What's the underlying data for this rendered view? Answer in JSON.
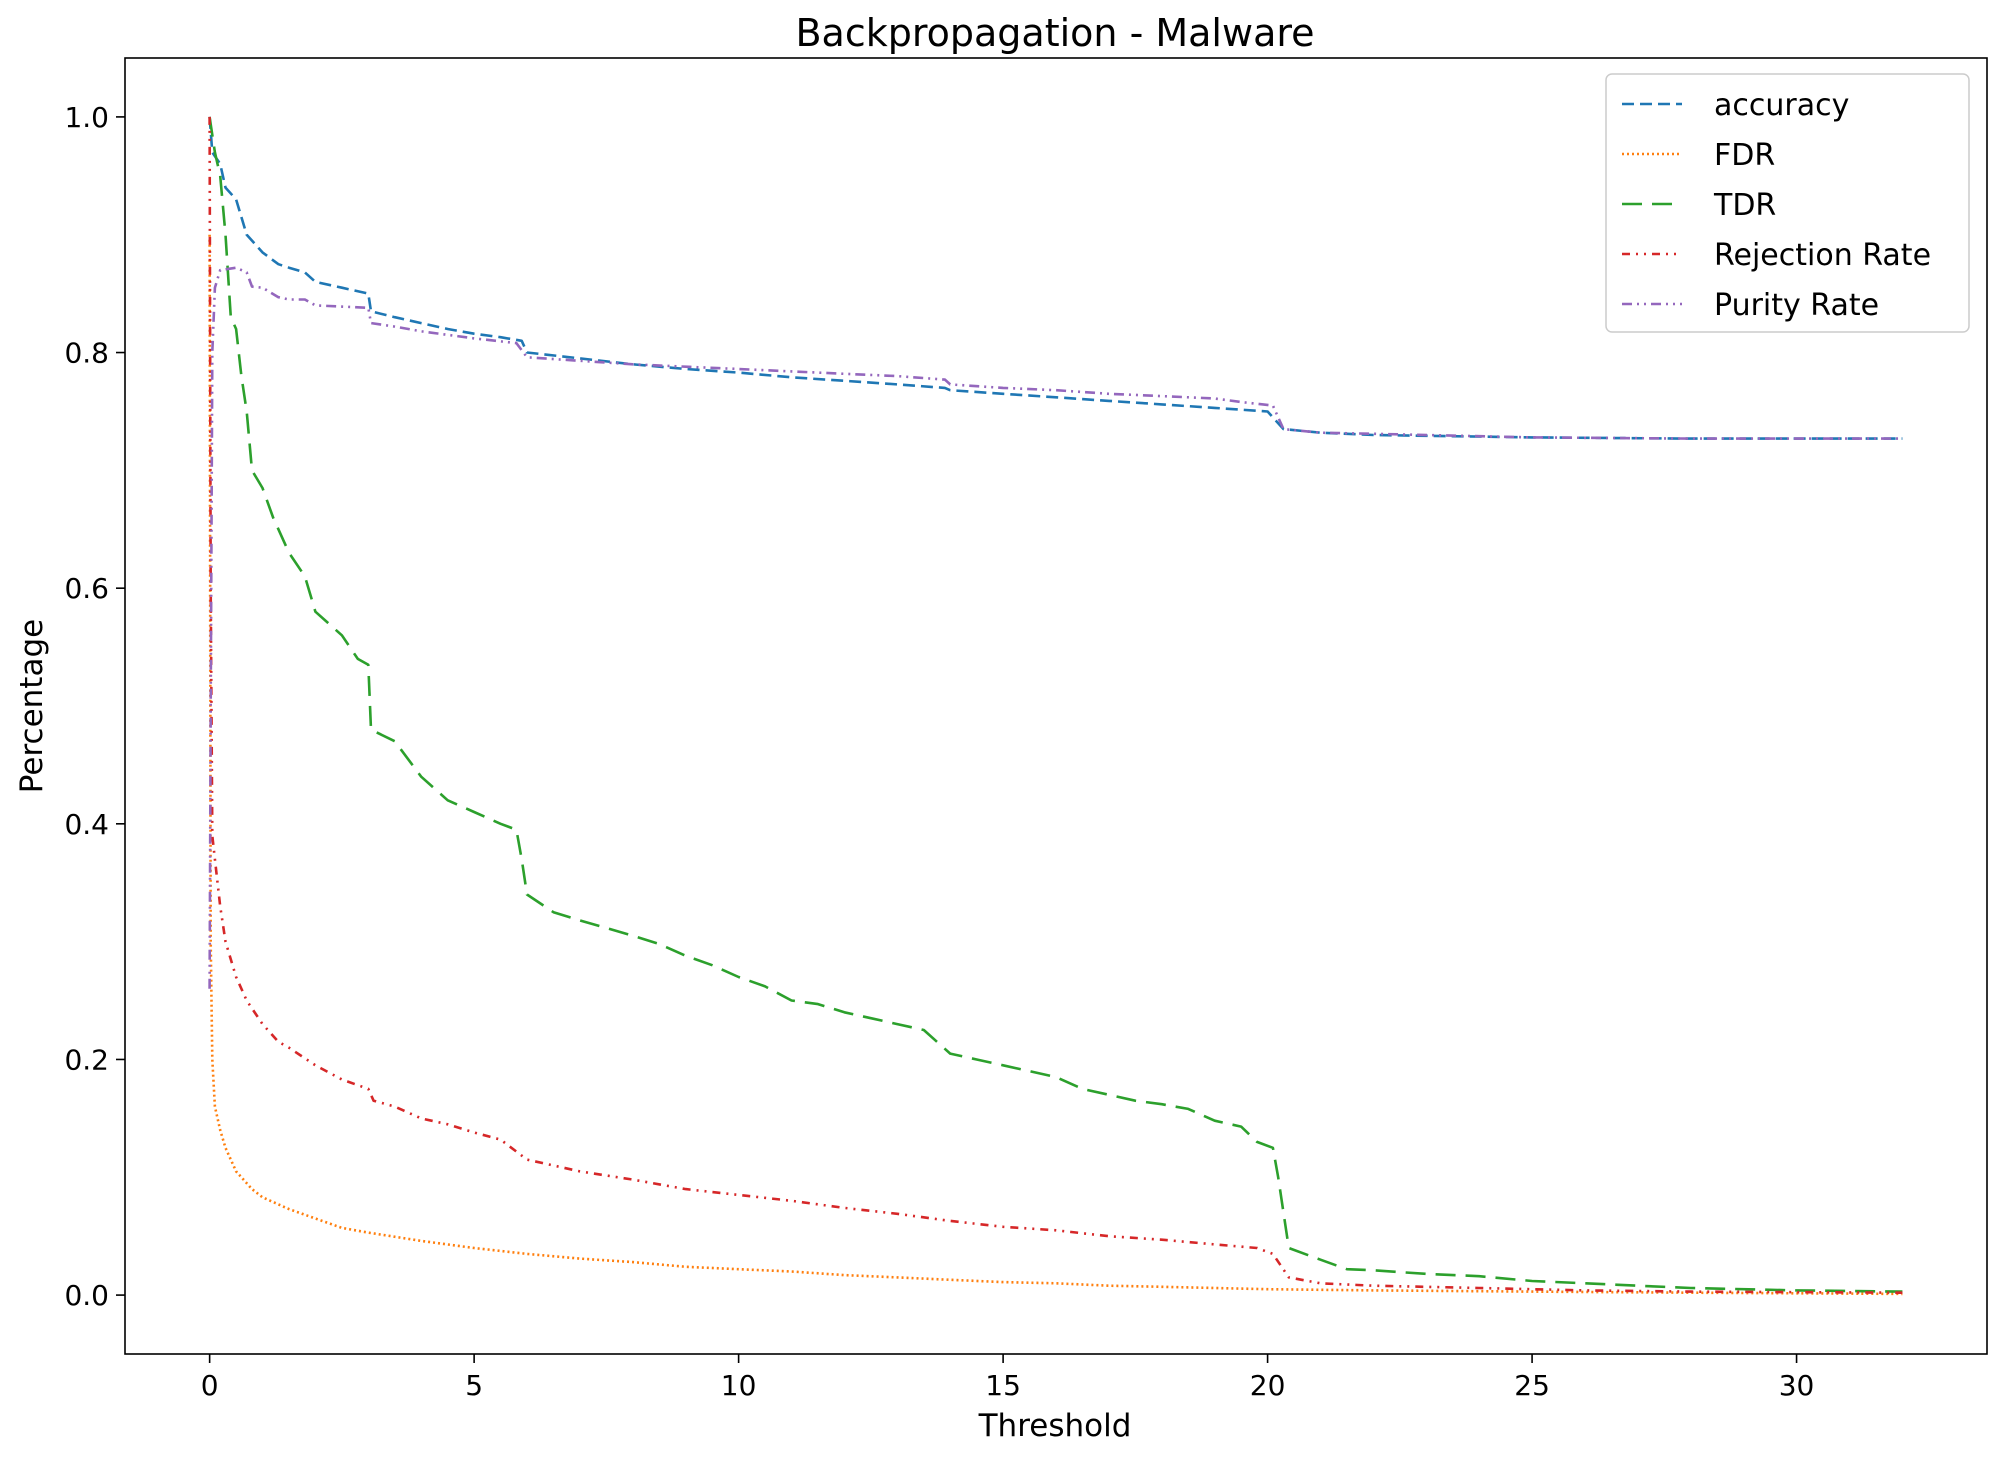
{
  "chart_data": {
    "type": "line",
    "title": "Backpropagation - Malware",
    "xlabel": "Threshold",
    "ylabel": "Percentage",
    "xlim": [
      -1.6,
      33.6
    ],
    "ylim": [
      -0.05,
      1.05
    ],
    "xticks": [
      0,
      5,
      10,
      15,
      20,
      25,
      30
    ],
    "yticks": [
      0.0,
      0.2,
      0.4,
      0.6,
      0.8,
      1.0
    ],
    "xtick_labels": [
      "0",
      "5",
      "10",
      "15",
      "20",
      "25",
      "30"
    ],
    "ytick_labels": [
      "0.0",
      "0.2",
      "0.4",
      "0.6",
      "0.8",
      "1.0"
    ],
    "grid": false,
    "legend_position": "top-right",
    "series": [
      {
        "name": "accuracy",
        "color": "#1f77b4",
        "dash": "12,6",
        "points": [
          [
            0,
            1.0
          ],
          [
            0.05,
            0.97
          ],
          [
            0.2,
            0.96
          ],
          [
            0.3,
            0.94
          ],
          [
            0.5,
            0.93
          ],
          [
            0.7,
            0.9
          ],
          [
            1.0,
            0.885
          ],
          [
            1.3,
            0.875
          ],
          [
            1.5,
            0.872
          ],
          [
            1.8,
            0.868
          ],
          [
            2.0,
            0.86
          ],
          [
            2.5,
            0.855
          ],
          [
            3.0,
            0.85
          ],
          [
            3.05,
            0.835
          ],
          [
            3.5,
            0.83
          ],
          [
            4.0,
            0.825
          ],
          [
            4.5,
            0.82
          ],
          [
            5.0,
            0.816
          ],
          [
            5.5,
            0.813
          ],
          [
            5.9,
            0.81
          ],
          [
            6.0,
            0.8
          ],
          [
            7.0,
            0.795
          ],
          [
            8.0,
            0.79
          ],
          [
            9.0,
            0.786
          ],
          [
            10.0,
            0.783
          ],
          [
            11.0,
            0.779
          ],
          [
            12.0,
            0.776
          ],
          [
            13.0,
            0.773
          ],
          [
            13.9,
            0.77
          ],
          [
            14.0,
            0.768
          ],
          [
            15.0,
            0.765
          ],
          [
            16.0,
            0.762
          ],
          [
            17.0,
            0.759
          ],
          [
            18.0,
            0.756
          ],
          [
            19.0,
            0.753
          ],
          [
            20.0,
            0.75
          ],
          [
            20.3,
            0.735
          ],
          [
            21.0,
            0.732
          ],
          [
            22.0,
            0.73
          ],
          [
            25.0,
            0.728
          ],
          [
            28.0,
            0.727
          ],
          [
            32.0,
            0.727
          ]
        ]
      },
      {
        "name": "FDR",
        "color": "#ff7f0e",
        "dash": "2,3",
        "points": [
          [
            0,
            0.9
          ],
          [
            0.02,
            0.3
          ],
          [
            0.05,
            0.2
          ],
          [
            0.1,
            0.16
          ],
          [
            0.2,
            0.14
          ],
          [
            0.3,
            0.125
          ],
          [
            0.5,
            0.105
          ],
          [
            0.8,
            0.09
          ],
          [
            1.0,
            0.083
          ],
          [
            1.5,
            0.073
          ],
          [
            2.0,
            0.065
          ],
          [
            2.5,
            0.057
          ],
          [
            3.0,
            0.053
          ],
          [
            4.0,
            0.046
          ],
          [
            5.0,
            0.04
          ],
          [
            6.0,
            0.035
          ],
          [
            7.0,
            0.031
          ],
          [
            8.0,
            0.028
          ],
          [
            9.0,
            0.024
          ],
          [
            10.0,
            0.022
          ],
          [
            11.0,
            0.02
          ],
          [
            12.0,
            0.017
          ],
          [
            13.0,
            0.015
          ],
          [
            14.0,
            0.013
          ],
          [
            15.0,
            0.011
          ],
          [
            16.0,
            0.01
          ],
          [
            17.0,
            0.008
          ],
          [
            18.0,
            0.007
          ],
          [
            19.0,
            0.006
          ],
          [
            20.0,
            0.005
          ],
          [
            22.0,
            0.004
          ],
          [
            25.0,
            0.003
          ],
          [
            28.0,
            0.002
          ],
          [
            32.0,
            0.001
          ]
        ]
      },
      {
        "name": "TDR",
        "color": "#2ca02c",
        "dash": "20,10",
        "points": [
          [
            0,
            1.0
          ],
          [
            0.1,
            0.97
          ],
          [
            0.2,
            0.95
          ],
          [
            0.3,
            0.9
          ],
          [
            0.4,
            0.83
          ],
          [
            0.5,
            0.82
          ],
          [
            0.6,
            0.78
          ],
          [
            0.7,
            0.75
          ],
          [
            0.8,
            0.7
          ],
          [
            1.0,
            0.685
          ],
          [
            1.2,
            0.66
          ],
          [
            1.5,
            0.63
          ],
          [
            1.8,
            0.61
          ],
          [
            2.0,
            0.58
          ],
          [
            2.5,
            0.56
          ],
          [
            2.8,
            0.54
          ],
          [
            3.0,
            0.535
          ],
          [
            3.05,
            0.48
          ],
          [
            3.5,
            0.47
          ],
          [
            4.0,
            0.44
          ],
          [
            4.5,
            0.42
          ],
          [
            5.0,
            0.41
          ],
          [
            5.5,
            0.4
          ],
          [
            5.8,
            0.395
          ],
          [
            5.9,
            0.37
          ],
          [
            6.0,
            0.34
          ],
          [
            6.5,
            0.325
          ],
          [
            7.0,
            0.318
          ],
          [
            8.0,
            0.305
          ],
          [
            8.5,
            0.298
          ],
          [
            9.0,
            0.288
          ],
          [
            9.5,
            0.28
          ],
          [
            10.0,
            0.27
          ],
          [
            10.5,
            0.262
          ],
          [
            11.0,
            0.25
          ],
          [
            11.5,
            0.247
          ],
          [
            12.0,
            0.24
          ],
          [
            12.5,
            0.235
          ],
          [
            13.0,
            0.23
          ],
          [
            13.5,
            0.225
          ],
          [
            14.0,
            0.205
          ],
          [
            14.5,
            0.2
          ],
          [
            15.0,
            0.195
          ],
          [
            16.0,
            0.185
          ],
          [
            16.5,
            0.175
          ],
          [
            17.0,
            0.17
          ],
          [
            17.5,
            0.165
          ],
          [
            18.0,
            0.162
          ],
          [
            18.5,
            0.158
          ],
          [
            19.0,
            0.148
          ],
          [
            19.5,
            0.143
          ],
          [
            19.8,
            0.13
          ],
          [
            20.1,
            0.125
          ],
          [
            20.2,
            0.1
          ],
          [
            20.4,
            0.04
          ],
          [
            21.0,
            0.03
          ],
          [
            21.5,
            0.022
          ],
          [
            22.0,
            0.021
          ],
          [
            23.0,
            0.018
          ],
          [
            24.0,
            0.016
          ],
          [
            25.0,
            0.012
          ],
          [
            26.0,
            0.01
          ],
          [
            27.0,
            0.008
          ],
          [
            28.0,
            0.006
          ],
          [
            30.0,
            0.004
          ],
          [
            32.0,
            0.003
          ]
        ]
      },
      {
        "name": "Rejection Rate",
        "color": "#d62728",
        "dash": "8,6,2,6,2,6",
        "points": [
          [
            0,
            1.0
          ],
          [
            0.02,
            0.6
          ],
          [
            0.05,
            0.39
          ],
          [
            0.1,
            0.37
          ],
          [
            0.2,
            0.33
          ],
          [
            0.3,
            0.3
          ],
          [
            0.5,
            0.27
          ],
          [
            0.7,
            0.25
          ],
          [
            1.0,
            0.23
          ],
          [
            1.3,
            0.215
          ],
          [
            1.5,
            0.21
          ],
          [
            2.0,
            0.195
          ],
          [
            2.5,
            0.183
          ],
          [
            3.0,
            0.175
          ],
          [
            3.1,
            0.165
          ],
          [
            3.5,
            0.16
          ],
          [
            4.0,
            0.15
          ],
          [
            4.5,
            0.145
          ],
          [
            5.0,
            0.138
          ],
          [
            5.5,
            0.132
          ],
          [
            6.0,
            0.115
          ],
          [
            6.5,
            0.11
          ],
          [
            7.0,
            0.105
          ],
          [
            8.0,
            0.098
          ],
          [
            9.0,
            0.09
          ],
          [
            10.0,
            0.085
          ],
          [
            11.0,
            0.08
          ],
          [
            12.0,
            0.074
          ],
          [
            13.0,
            0.069
          ],
          [
            14.0,
            0.063
          ],
          [
            15.0,
            0.058
          ],
          [
            16.0,
            0.055
          ],
          [
            17.0,
            0.05
          ],
          [
            18.0,
            0.047
          ],
          [
            19.0,
            0.043
          ],
          [
            19.8,
            0.04
          ],
          [
            20.1,
            0.035
          ],
          [
            20.4,
            0.015
          ],
          [
            21.0,
            0.01
          ],
          [
            22.0,
            0.008
          ],
          [
            24.0,
            0.006
          ],
          [
            26.0,
            0.004
          ],
          [
            28.0,
            0.003
          ],
          [
            32.0,
            0.002
          ]
        ]
      },
      {
        "name": "Purity Rate",
        "color": "#9467bd",
        "dash": "10,5,2,5,2,5",
        "points": [
          [
            0,
            0.26
          ],
          [
            0.02,
            0.5
          ],
          [
            0.05,
            0.8
          ],
          [
            0.1,
            0.855
          ],
          [
            0.2,
            0.87
          ],
          [
            0.5,
            0.872
          ],
          [
            0.7,
            0.868
          ],
          [
            0.8,
            0.856
          ],
          [
            1.0,
            0.855
          ],
          [
            1.3,
            0.847
          ],
          [
            1.5,
            0.845
          ],
          [
            1.8,
            0.845
          ],
          [
            2.0,
            0.84
          ],
          [
            3.0,
            0.838
          ],
          [
            3.05,
            0.825
          ],
          [
            3.5,
            0.822
          ],
          [
            4.0,
            0.818
          ],
          [
            5.0,
            0.812
          ],
          [
            5.8,
            0.808
          ],
          [
            6.0,
            0.796
          ],
          [
            7.0,
            0.793
          ],
          [
            8.0,
            0.79
          ],
          [
            9.0,
            0.788
          ],
          [
            10.0,
            0.786
          ],
          [
            11.0,
            0.784
          ],
          [
            12.0,
            0.782
          ],
          [
            13.0,
            0.78
          ],
          [
            13.9,
            0.777
          ],
          [
            14.0,
            0.773
          ],
          [
            15.0,
            0.77
          ],
          [
            16.0,
            0.768
          ],
          [
            17.0,
            0.765
          ],
          [
            18.0,
            0.763
          ],
          [
            19.0,
            0.761
          ],
          [
            19.5,
            0.758
          ],
          [
            20.1,
            0.755
          ],
          [
            20.3,
            0.735
          ],
          [
            21.0,
            0.732
          ],
          [
            22.0,
            0.731
          ],
          [
            25.0,
            0.728
          ],
          [
            28.0,
            0.727
          ],
          [
            32.0,
            0.727
          ]
        ]
      }
    ]
  }
}
